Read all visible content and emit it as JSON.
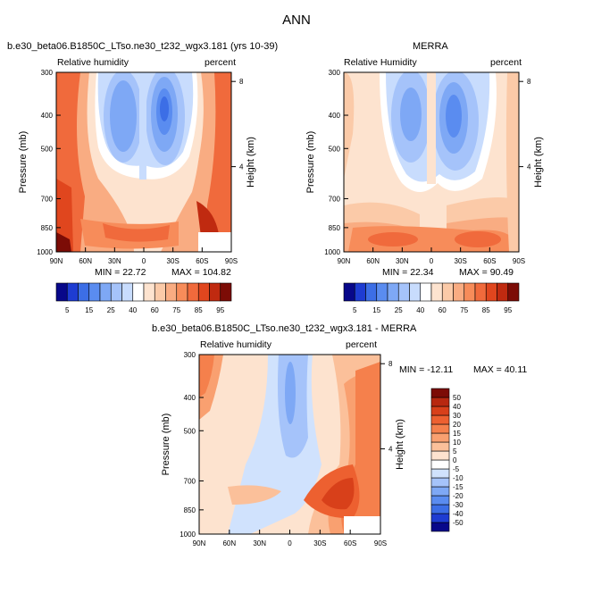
{
  "figure": {
    "title": "ANN"
  },
  "colorbar_full": {
    "colors": [
      "#08088a",
      "#1e3cd2",
      "#3c6ee6",
      "#5a8cf0",
      "#7ea8f5",
      "#a5c3fa",
      "#c8dcfd",
      "#ffffff",
      "#fde3cf",
      "#fbcaa8",
      "#f9ac82",
      "#f78c5a",
      "#f06a3c",
      "#e0461e",
      "#c02a10",
      "#7c0c06"
    ],
    "labels": [
      "5",
      "15",
      "25",
      "40",
      "60",
      "75",
      "85",
      "95"
    ]
  },
  "colorbar_diff": {
    "colors": [
      "#08088a",
      "#1e3cd2",
      "#3c6ee6",
      "#5a8cf0",
      "#7ea8f5",
      "#a5c3fa",
      "#d0e2fd",
      "#ffffff",
      "#fde3cf",
      "#fbc09a",
      "#f9a070",
      "#f5804c",
      "#ed6030",
      "#d8401a",
      "#b82810",
      "#7c0c06"
    ],
    "labels": [
      "50",
      "40",
      "30",
      "20",
      "15",
      "10",
      "5",
      "0",
      "-5",
      "-10",
      "-15",
      "-20",
      "-30",
      "-40",
      "-50"
    ]
  },
  "chart_data": [
    {
      "type": "heatmap",
      "panel_title": "b.e30_beta06.B1850C_LTso.ne30_t232_wgx3.181 (yrs 10-39)",
      "variable": "Relative humidity",
      "units": "percent",
      "ylabel": "Pressure (mb)",
      "y2label": "Height (km)",
      "x_ticks": [
        "90N",
        "60N",
        "30N",
        "0",
        "30S",
        "60S",
        "90S"
      ],
      "y_ticks": [
        "300",
        "400",
        "500",
        "700",
        "850",
        "1000"
      ],
      "y2_ticks": [
        "8",
        "4"
      ],
      "xlim": [
        90,
        -90
      ],
      "ylim": [
        1000,
        300
      ],
      "min_label": "MIN = 22.72",
      "max_label": "MAX = 104.82",
      "min": 22.72,
      "max": 104.82
    },
    {
      "type": "heatmap",
      "panel_title": "MERRA",
      "variable": "Relative Humidity",
      "units": "percent",
      "ylabel": "Pressure (mb)",
      "y2label": "Height (km)",
      "x_ticks": [
        "90N",
        "60N",
        "30N",
        "0",
        "30S",
        "60S",
        "90S"
      ],
      "y_ticks": [
        "300",
        "400",
        "500",
        "700",
        "850",
        "1000"
      ],
      "y2_ticks": [
        "8",
        "4"
      ],
      "xlim": [
        90,
        -90
      ],
      "ylim": [
        1000,
        300
      ],
      "min_label": "MIN = 22.34",
      "max_label": "MAX = 90.49",
      "min": 22.34,
      "max": 90.49
    },
    {
      "type": "heatmap",
      "panel_title": "b.e30_beta06.B1850C_LTso.ne30_t232_wgx3.181 - MERRA",
      "variable": "Relative humidity",
      "units": "percent",
      "ylabel": "Pressure (mb)",
      "y2label": "Height (km)",
      "x_ticks": [
        "90N",
        "60N",
        "30N",
        "0",
        "30S",
        "60S",
        "90S"
      ],
      "y_ticks": [
        "300",
        "400",
        "500",
        "700",
        "850",
        "1000"
      ],
      "y2_ticks": [
        "8",
        "4"
      ],
      "xlim": [
        90,
        -90
      ],
      "ylim": [
        1000,
        300
      ],
      "min_label": "MIN = -12.11",
      "max_label": "MAX =  40.11",
      "min": -12.11,
      "max": 40.11
    }
  ]
}
